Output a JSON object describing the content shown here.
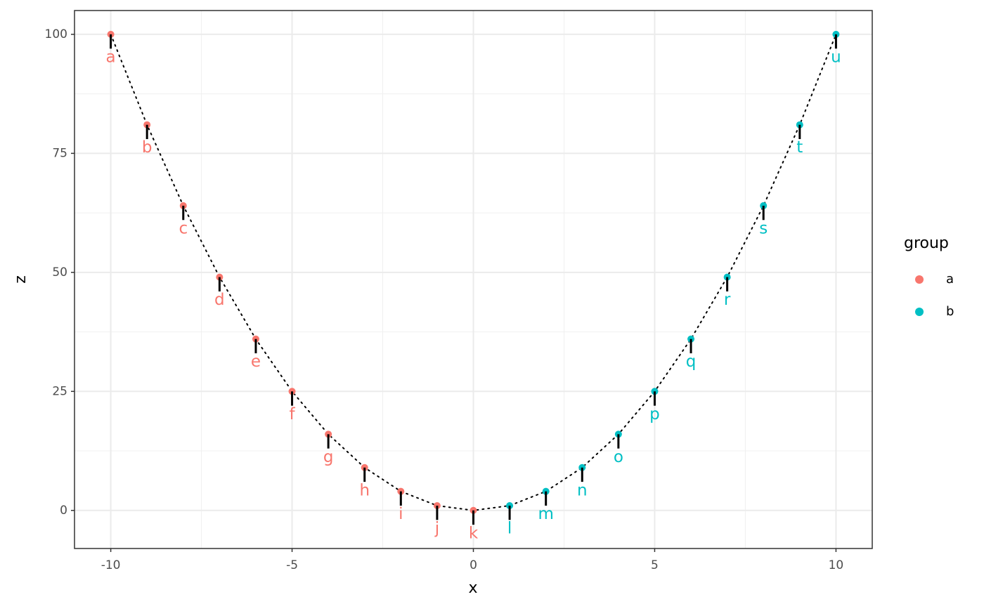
{
  "chart_data": {
    "type": "scatter",
    "x_label": "x",
    "y_label": "z",
    "legend_title": "group",
    "xlim": [
      -11,
      11
    ],
    "ylim": [
      -8,
      105
    ],
    "xticks": [
      -10,
      -5,
      0,
      5,
      10
    ],
    "yticks": [
      0,
      25,
      50,
      75,
      100
    ],
    "x_minor_grid": [
      -7.5,
      -2.5,
      2.5,
      7.5
    ],
    "y_minor_grid": [
      12.5,
      37.5,
      62.5,
      87.5
    ],
    "grid": true,
    "legend": "right",
    "line_style": "dotted",
    "series": [
      {
        "name": "a",
        "color": "#F8766D",
        "x": [
          -10,
          -9,
          -8,
          -7,
          -6,
          -5,
          -4,
          -3,
          -2,
          -1,
          0
        ],
        "values": [
          100,
          81,
          64,
          49,
          36,
          25,
          16,
          9,
          4,
          1,
          0
        ],
        "segment_ends": [
          97,
          78,
          61,
          46,
          33,
          22,
          13,
          6,
          1,
          -2,
          -3
        ],
        "labels": [
          "a",
          "b",
          "c",
          "d",
          "e",
          "f",
          "g",
          "h",
          "i",
          "j",
          "k"
        ]
      },
      {
        "name": "b",
        "color": "#00BFC4",
        "x": [
          1,
          2,
          3,
          4,
          5,
          6,
          7,
          8,
          9,
          10
        ],
        "values": [
          1,
          4,
          9,
          16,
          25,
          36,
          49,
          64,
          81,
          100
        ],
        "segment_ends": [
          -2,
          1,
          6,
          13,
          22,
          33,
          46,
          61,
          78,
          97
        ],
        "labels": [
          "l",
          "m",
          "n",
          "o",
          "p",
          "q",
          "r",
          "s",
          "t",
          "u"
        ]
      }
    ]
  }
}
